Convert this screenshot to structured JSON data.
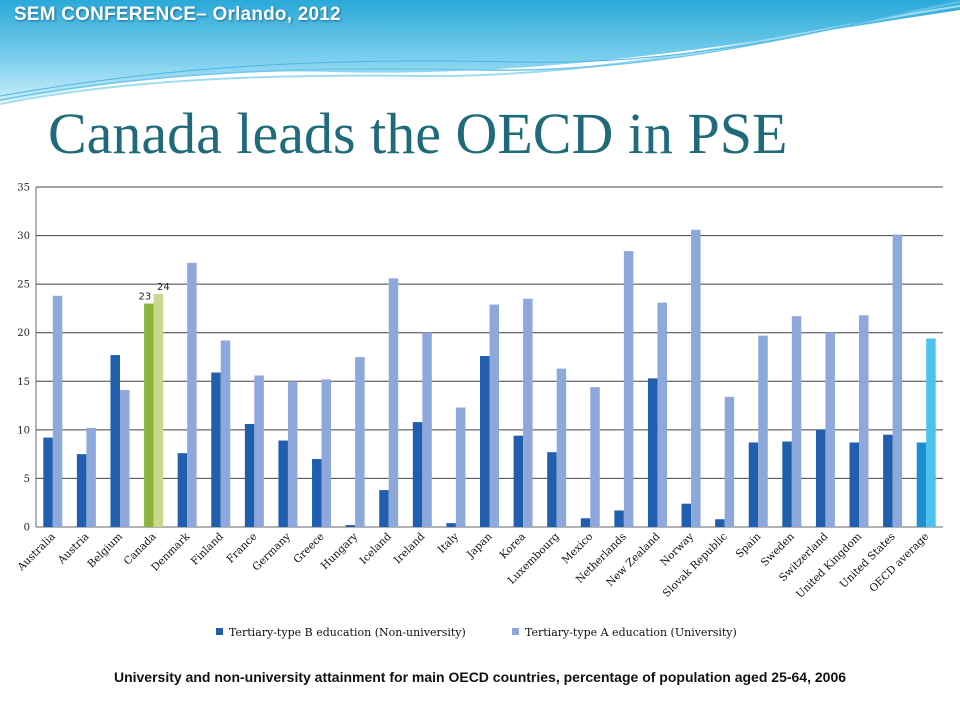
{
  "header": {
    "conference": "SEM CONFERENCE– Orlando, 2012"
  },
  "slide": {
    "title": "Canada leads the OECD in PSE",
    "caption": "University and non-university attainment for main OECD countries, percentage of population aged 25-64, 2006"
  },
  "chart_data": {
    "type": "bar",
    "categories": [
      "Australia",
      "Austria",
      "Belgium",
      "Canada",
      "Denmark",
      "Finland",
      "France",
      "Germany",
      "Greece",
      "Hungary",
      "Iceland",
      "Ireland",
      "Italy",
      "Japan",
      "Korea",
      "Luxembourg",
      "Mexico",
      "Netherlands",
      "New Zealand",
      "Norway",
      "Slovak Republic",
      "Spain",
      "Sweden",
      "Switzerland",
      "United Kingdom",
      "United States",
      "OECD average"
    ],
    "series": [
      {
        "name": "Tertiary-type B education (Non-university)",
        "color": "#1f5fae",
        "values": [
          9.2,
          7.5,
          17.7,
          23,
          7.6,
          15.9,
          10.6,
          8.9,
          7.0,
          0.2,
          3.8,
          10.8,
          0.4,
          17.6,
          9.4,
          7.7,
          0.9,
          1.7,
          15.3,
          2.4,
          0.8,
          8.7,
          8.8,
          10.0,
          8.7,
          9.5,
          8.7
        ]
      },
      {
        "name": "Tertiary-type A education (University)",
        "color": "#8fa8dc",
        "values": [
          23.8,
          10.2,
          14.1,
          24,
          27.2,
          19.2,
          15.6,
          15.0,
          15.2,
          17.5,
          25.6,
          20.0,
          12.3,
          22.9,
          23.5,
          16.3,
          14.4,
          28.4,
          23.1,
          30.6,
          13.4,
          19.7,
          21.7,
          20.0,
          21.8,
          30.1,
          19.4
        ]
      }
    ],
    "highlight": {
      "Canada": [
        "#8db33f",
        "#c6d98f"
      ],
      "OECD average": [
        "#1c8fd0",
        "#4cc3ee"
      ]
    },
    "data_labels": [
      {
        "category": "Canada",
        "series": 0,
        "text": "23"
      },
      {
        "category": "Canada",
        "series": 1,
        "text": "24"
      }
    ],
    "ylim": [
      0,
      35
    ],
    "yticks": [
      "0",
      "5",
      "10",
      "15",
      "20",
      "25",
      "30",
      "35"
    ],
    "grid": true,
    "legend": "bottom"
  }
}
